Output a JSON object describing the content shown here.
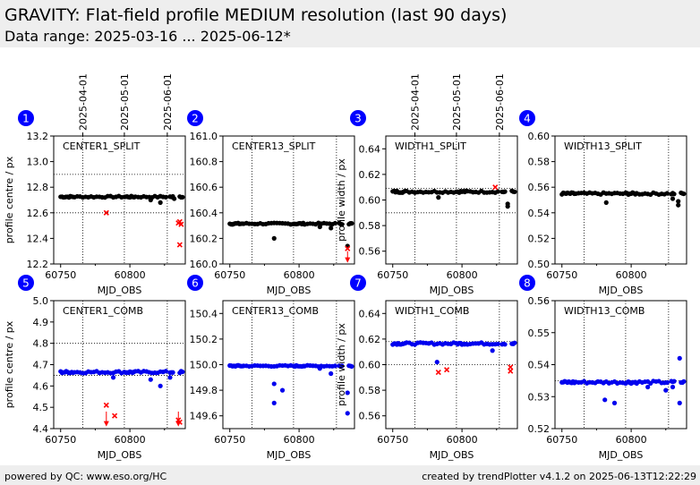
{
  "header": {
    "title": "GRAVITY: Flat-field profile MEDIUM resolution (last 90 days)",
    "subtitle": "Data range: 2025-03-16 ... 2025-06-12*"
  },
  "footer": {
    "left": "powered by QC: www.eso.org/HC",
    "right": "created by trendPlotter v4.1.2 on 2025-06-13T12:22:29"
  },
  "top_dates": {
    "labels": [
      "2025-04-01",
      "2025-05-01",
      "2025-06-01"
    ],
    "mjd": [
      60766,
      60796,
      60827
    ]
  },
  "colors": {
    "black": "#000000",
    "blue": "#0000ee",
    "red": "#ff0000",
    "badge": "#0000ff"
  },
  "chart_data": [
    {
      "type": "scatter",
      "panel_number": "1",
      "label": "CENTER1_SPLIT",
      "ylabel": "profile centre / px",
      "xlabel": "MJD_OBS",
      "xlim": [
        60745,
        60840
      ],
      "ylim": [
        12.2,
        13.2
      ],
      "yticks": [
        12.2,
        12.4,
        12.6,
        12.8,
        13.0,
        13.2
      ],
      "xticks": [
        60750,
        60800
      ],
      "ref_lines": [
        12.9,
        12.6
      ],
      "series_color": "black",
      "base": 12.725,
      "noise": 0.006,
      "outliers": [
        [
          60815,
          12.7
        ],
        [
          60822,
          12.68
        ],
        [
          60832,
          12.71
        ]
      ],
      "red": [
        [
          60783,
          12.6
        ],
        [
          60835,
          12.52
        ],
        [
          60836,
          12.53
        ],
        [
          60837,
          12.51
        ],
        [
          60836,
          12.35
        ]
      ],
      "red_arrows": []
    },
    {
      "type": "scatter",
      "panel_number": "2",
      "label": "CENTER13_SPLIT",
      "ylabel": "",
      "xlabel": "MJD_OBS",
      "xlim": [
        60745,
        60840
      ],
      "ylim": [
        160.0,
        161.0
      ],
      "yticks": [
        160.0,
        160.2,
        160.4,
        160.6,
        160.8,
        161.0
      ],
      "xticks": [
        60750,
        60800
      ],
      "ref_lines": [],
      "series_color": "black",
      "base": 160.315,
      "noise": 0.006,
      "outliers": [
        [
          60782,
          160.2
        ],
        [
          60815,
          160.29
        ],
        [
          60823,
          160.28
        ],
        [
          60835,
          160.14
        ]
      ],
      "red": [
        [
          60835,
          160.12
        ]
      ],
      "red_arrows": [
        [
          60835,
          160.1,
          160.01
        ]
      ]
    },
    {
      "type": "scatter",
      "panel_number": "3",
      "label": "WIDTH1_SPLIT",
      "ylabel": "profile width / px",
      "xlabel": "MJD_OBS",
      "xlim": [
        60745,
        60840
      ],
      "ylim": [
        0.55,
        0.65
      ],
      "yticks": [
        0.56,
        0.58,
        0.6,
        0.62,
        0.64
      ],
      "xticks": [
        60750,
        60800
      ],
      "ref_lines": [
        0.609,
        0.59
      ],
      "series_color": "black",
      "base": 0.6065,
      "noise": 0.0008,
      "outliers": [
        [
          60783,
          0.602
        ],
        [
          60833,
          0.595
        ],
        [
          60833,
          0.597
        ]
      ],
      "red": [
        [
          60824,
          0.61
        ]
      ],
      "red_arrows": []
    },
    {
      "type": "scatter",
      "panel_number": "4",
      "label": "WIDTH13_SPLIT",
      "ylabel": "",
      "xlabel": "MJD_OBS",
      "xlim": [
        60745,
        60840
      ],
      "ylim": [
        0.5,
        0.6
      ],
      "yticks": [
        0.5,
        0.52,
        0.54,
        0.56,
        0.58,
        0.6
      ],
      "xticks": [
        60750,
        60800
      ],
      "ref_lines": [],
      "series_color": "black",
      "base": 0.555,
      "noise": 0.0008,
      "outliers": [
        [
          60782,
          0.548
        ],
        [
          60830,
          0.551
        ],
        [
          60834,
          0.549
        ],
        [
          60834,
          0.546
        ]
      ],
      "red": [],
      "red_arrows": []
    },
    {
      "type": "scatter",
      "panel_number": "5",
      "label": "CENTER1_COMB",
      "ylabel": "profile centre / px",
      "xlabel": "MJD_OBS",
      "xlim": [
        60745,
        60840
      ],
      "ylim": [
        4.4,
        5.0
      ],
      "yticks": [
        4.4,
        4.5,
        4.6,
        4.7,
        4.8,
        4.9,
        5.0
      ],
      "xticks": [
        60750,
        60800
      ],
      "ref_lines": [
        4.8,
        4.65
      ],
      "series_color": "blue",
      "base": 4.665,
      "noise": 0.005,
      "outliers": [
        [
          60788,
          4.64
        ],
        [
          60815,
          4.63
        ],
        [
          60822,
          4.6
        ],
        [
          60829,
          4.64
        ]
      ],
      "red": [
        [
          60783,
          4.51
        ],
        [
          60789,
          4.46
        ],
        [
          60835,
          4.44
        ],
        [
          60836,
          4.43
        ]
      ],
      "red_arrows": [
        [
          60783,
          4.48,
          4.41
        ],
        [
          60835,
          4.48,
          4.41
        ]
      ]
    },
    {
      "type": "scatter",
      "panel_number": "6",
      "label": "CENTER13_COMB",
      "ylabel": "",
      "xlabel": "MJD_OBS",
      "xlim": [
        60745,
        60840
      ],
      "ylim": [
        149.5,
        150.5
      ],
      "yticks": [
        149.6,
        149.8,
        150.0,
        150.2,
        150.4
      ],
      "xticks": [
        60750,
        60800
      ],
      "ref_lines": [],
      "series_color": "blue",
      "base": 149.99,
      "noise": 0.005,
      "outliers": [
        [
          60782,
          149.85
        ],
        [
          60782,
          149.7
        ],
        [
          60788,
          149.8
        ],
        [
          60815,
          149.97
        ],
        [
          60823,
          149.93
        ],
        [
          60835,
          149.78
        ],
        [
          60835,
          149.62
        ]
      ],
      "red": [],
      "red_arrows": []
    },
    {
      "type": "scatter",
      "panel_number": "7",
      "label": "WIDTH1_COMB",
      "ylabel": "profile width / px",
      "xlabel": "MJD_OBS",
      "xlim": [
        60745,
        60840
      ],
      "ylim": [
        0.55,
        0.65
      ],
      "yticks": [
        0.56,
        0.58,
        0.6,
        0.62,
        0.64
      ],
      "xticks": [
        60750,
        60800
      ],
      "ref_lines": [
        0.618,
        0.6
      ],
      "series_color": "blue",
      "base": 0.6165,
      "noise": 0.0008,
      "outliers": [
        [
          60782,
          0.602
        ],
        [
          60822,
          0.611
        ]
      ],
      "red": [
        [
          60783,
          0.594
        ],
        [
          60789,
          0.596
        ],
        [
          60835,
          0.598
        ],
        [
          60835,
          0.595
        ]
      ],
      "red_arrows": []
    },
    {
      "type": "scatter",
      "panel_number": "8",
      "label": "WIDTH13_COMB",
      "ylabel": "",
      "xlabel": "MJD_OBS",
      "xlim": [
        60745,
        60840
      ],
      "ylim": [
        0.52,
        0.56
      ],
      "yticks": [
        0.52,
        0.53,
        0.54,
        0.55,
        0.56
      ],
      "xticks": [
        60750,
        60800
      ],
      "ref_lines": [
        0.535
      ],
      "series_color": "blue",
      "base": 0.5345,
      "noise": 0.0004,
      "outliers": [
        [
          60781,
          0.529
        ],
        [
          60788,
          0.528
        ],
        [
          60812,
          0.533
        ],
        [
          60825,
          0.532
        ],
        [
          60830,
          0.533
        ],
        [
          60835,
          0.542
        ],
        [
          60835,
          0.528
        ]
      ],
      "red": [],
      "red_arrows": []
    }
  ]
}
